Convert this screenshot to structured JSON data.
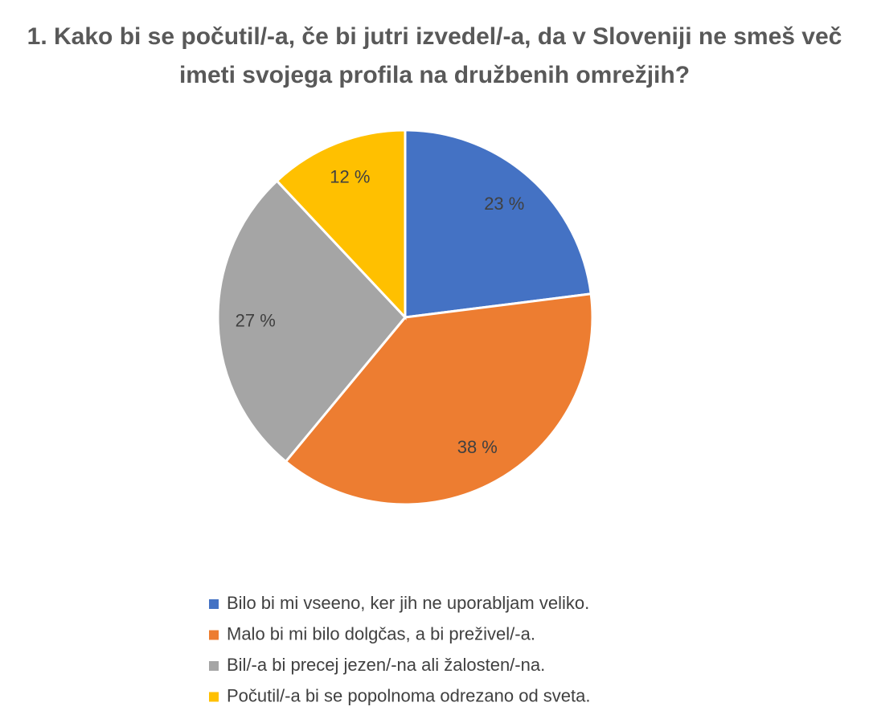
{
  "chart_data": {
    "type": "pie",
    "title": "1. Kako bi se počutil/-a, če bi jutri izvedel/-a, da v Sloveniji ne smeš več imeti svojega profila na družbenih omrežjih?",
    "categories": [
      "Bilo bi mi vseeno, ker jih ne uporabljam veliko.",
      "Malo bi mi bilo dolgčas, a bi preživel/-a.",
      "Bil/-a bi precej jezen/-na ali žalosten/-na.",
      "Počutil/-a bi se popolnoma odrezano od sveta."
    ],
    "values": [
      23,
      38,
      27,
      12
    ],
    "value_labels": [
      "23 %",
      "38 %",
      "27 %",
      "12 %"
    ],
    "colors": [
      "#4472c4",
      "#ed7d31",
      "#a5a5a5",
      "#ffc000"
    ]
  }
}
